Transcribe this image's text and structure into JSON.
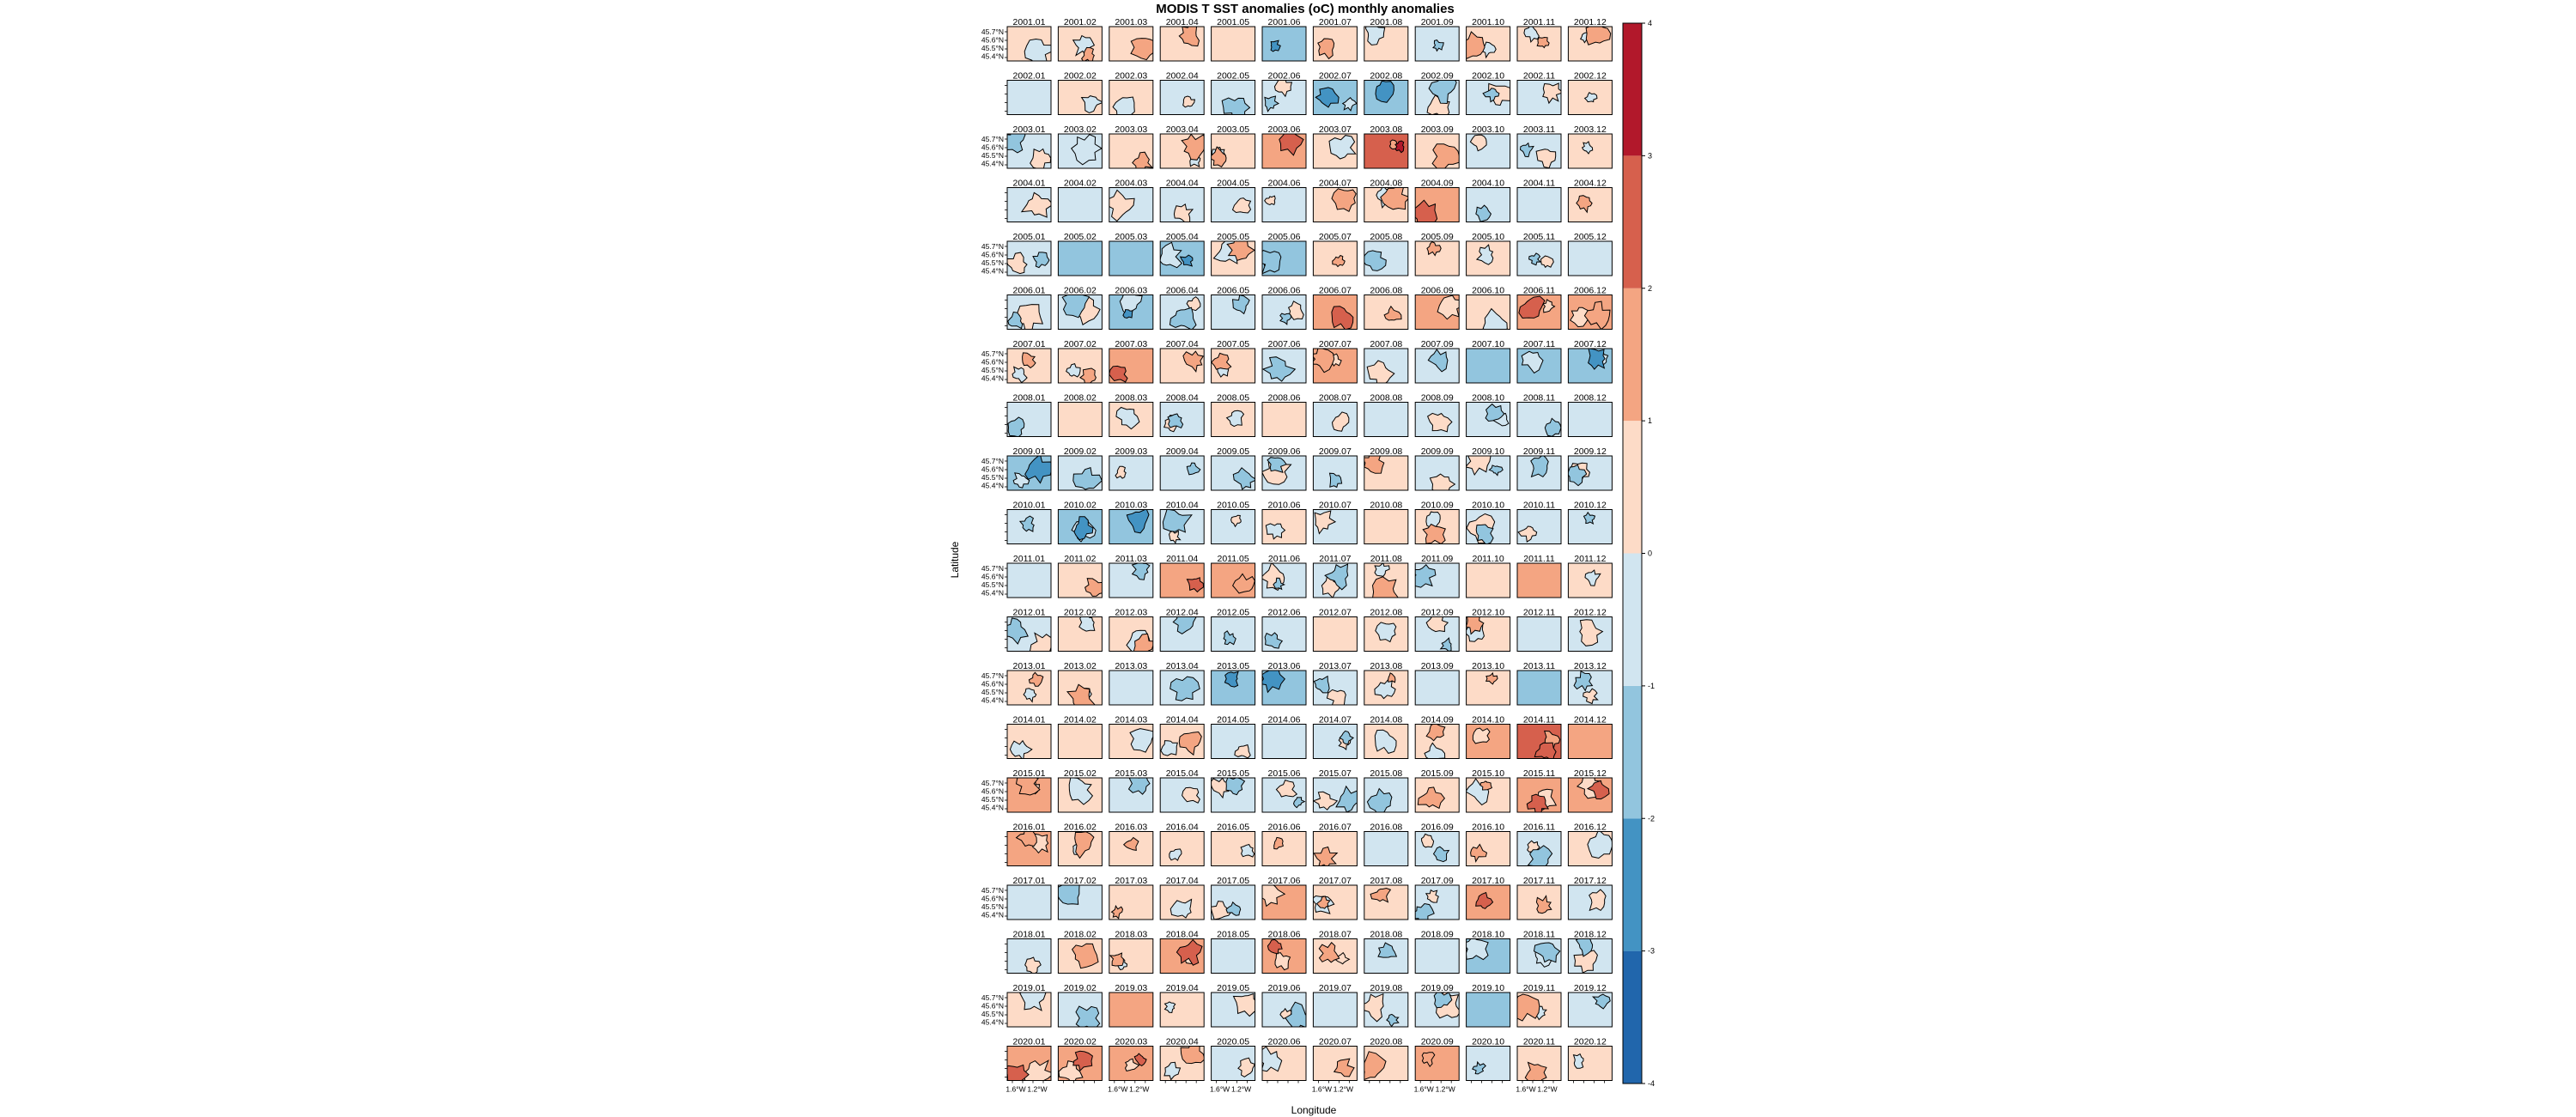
{
  "chart_data": {
    "type": "heatmap",
    "title": "MODIS T SST anomalies (oC) monthly anomalies",
    "xlabel": "Longitude",
    "ylabel": "Latitude",
    "lat_tick_labels": [
      "45.7°N",
      "45.6°N",
      "45.5°N",
      "45.4°N"
    ],
    "lon_tick_labels": [
      "1.6°W",
      "1.2°W"
    ],
    "colorbar": {
      "ticks": [
        -4,
        -3,
        -2,
        -1,
        0,
        1,
        2,
        3,
        4
      ],
      "range": [
        -4,
        4
      ],
      "bins": [
        {
          "from": -4,
          "to": -3,
          "color": "#2166ac"
        },
        {
          "from": -3,
          "to": -2,
          "color": "#4393c3"
        },
        {
          "from": -2,
          "to": -1,
          "color": "#92c5de"
        },
        {
          "from": -1,
          "to": 0,
          "color": "#d1e5f0"
        },
        {
          "from": 0,
          "to": 1,
          "color": "#fddbc7"
        },
        {
          "from": 1,
          "to": 2,
          "color": "#f4a582"
        },
        {
          "from": 2,
          "to": 3,
          "color": "#d6604d"
        },
        {
          "from": 3,
          "to": 4,
          "color": "#b2182b"
        }
      ]
    },
    "years": [
      2001,
      2002,
      2003,
      2004,
      2005,
      2006,
      2007,
      2008,
      2009,
      2010,
      2011,
      2012,
      2013,
      2014,
      2015,
      2016,
      2017,
      2018,
      2019,
      2020
    ],
    "months": [
      "01",
      "02",
      "03",
      "04",
      "05",
      "06",
      "07",
      "08",
      "09",
      "10",
      "11",
      "12"
    ],
    "panel_anomaly_estimates": [
      [
        0.6,
        0.4,
        0.8,
        0.3,
        0.9,
        -1.2,
        0.2,
        0.1,
        -0.3,
        0.2,
        0.3,
        0.5
      ],
      [
        -0.3,
        0.2,
        0.2,
        -0.4,
        -0.5,
        -0.9,
        -1.6,
        -1.3,
        -0.7,
        -0.5,
        -0.2,
        0.3
      ],
      [
        -0.5,
        -1.0,
        0.3,
        0.4,
        0.4,
        1.5,
        0.8,
        2.2,
        0.8,
        -0.9,
        -0.3,
        0.6
      ],
      [
        -0.3,
        -0.4,
        -0.3,
        -0.5,
        -0.3,
        -0.5,
        0.4,
        0.5,
        1.2,
        -0.6,
        -0.2,
        0.4
      ],
      [
        -0.5,
        -1.2,
        -1.8,
        -1.2,
        0.4,
        -1.1,
        0.2,
        -0.6,
        0.5,
        0.3,
        -0.9,
        -1.0
      ],
      [
        -0.2,
        -0.3,
        -1.2,
        -0.4,
        -0.3,
        -0.6,
        1.6,
        0.6,
        1.3,
        0.6,
        1.5,
        1.0
      ],
      [
        0.8,
        0.3,
        1.2,
        0.7,
        0.6,
        -0.8,
        1.0,
        -0.3,
        -1.0,
        -1.3,
        -1.4,
        -1.2
      ],
      [
        -0.4,
        0.8,
        0.4,
        -0.5,
        0.8,
        0.7,
        -0.5,
        -0.4,
        -0.6,
        -1.0,
        -0.8,
        -1.0
      ],
      [
        -1.3,
        -0.4,
        -0.3,
        -0.4,
        -0.5,
        -0.3,
        -0.4,
        0.4,
        -0.7,
        -0.4,
        -0.7,
        -0.6
      ],
      [
        -0.7,
        -1.5,
        -1.2,
        -0.3,
        -0.3,
        0.3,
        -0.3,
        0.3,
        0.2,
        -0.3,
        -0.4,
        -0.9
      ],
      [
        -0.4,
        0.3,
        -0.3,
        1.8,
        1.0,
        -0.6,
        -0.8,
        0.3,
        -0.2,
        0.6,
        1.1,
        0.3
      ],
      [
        -0.3,
        0.8,
        0.5,
        -0.3,
        -0.4,
        -0.5,
        0.6,
        0.3,
        -0.3,
        0.4,
        -0.4,
        -0.4
      ],
      [
        0.4,
        0.4,
        -0.9,
        -0.3,
        -1.4,
        -1.8,
        -0.4,
        0.3,
        -0.6,
        0.8,
        -1.5,
        -0.5
      ],
      [
        0.4,
        0.5,
        0.7,
        0.6,
        -0.6,
        -0.8,
        -0.3,
        0.4,
        0.6,
        1.2,
        2.0,
        1.6
      ],
      [
        1.0,
        0.4,
        -0.3,
        -0.4,
        -0.6,
        -0.5,
        -0.7,
        -0.9,
        0.5,
        0.3,
        1.1,
        1.3
      ],
      [
        1.0,
        0.8,
        0.6,
        0.5,
        0.3,
        0.8,
        0.4,
        -0.6,
        -0.5,
        0.4,
        -0.3,
        0.4
      ],
      [
        -0.9,
        -0.5,
        0.8,
        0.6,
        -0.5,
        1.0,
        0.8,
        0.2,
        -0.4,
        1.2,
        0.3,
        -0.4
      ],
      [
        -0.3,
        0.3,
        0.8,
        1.2,
        -0.3,
        1.2,
        0.9,
        -0.4,
        -0.7,
        -1.1,
        -1.0,
        -0.3
      ],
      [
        0.4,
        -0.3,
        1.1,
        0.6,
        -0.4,
        -0.6,
        -0.4,
        -0.3,
        -0.9,
        -1.2,
        0.7,
        -0.4
      ],
      [
        1.1,
        1.3,
        1.2,
        0.4,
        -0.4,
        0.8,
        0.5,
        0.6,
        1.0,
        -0.3,
        0.4,
        0.6
      ]
    ]
  }
}
